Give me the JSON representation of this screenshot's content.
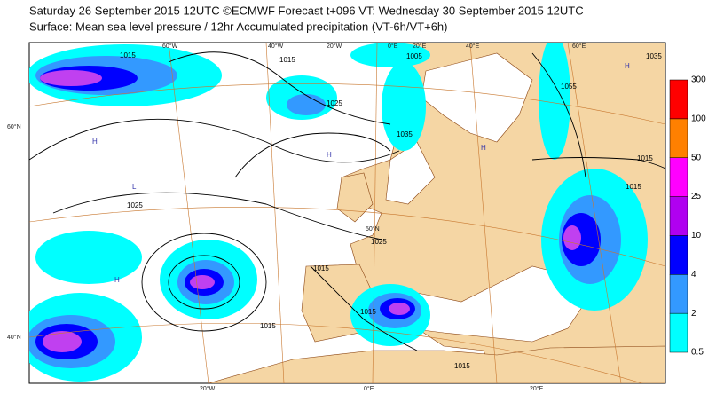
{
  "header": {
    "line1": "Saturday 26 September 2015 12UTC ©ECMWF Forecast t+096 VT: Wednesday 30 September 2015 12UTC",
    "line2": "Surface: Mean sea level pressure / 12hr Accumulated precipitation (VT-6h/VT+6h)"
  },
  "map": {
    "graticule_labels": [
      "60°W",
      "40°W",
      "20°W",
      "0°E",
      "20°E",
      "40°E",
      "60°E",
      "60°N",
      "40°N",
      "50°N",
      "20°W",
      "0°E",
      "20°E"
    ],
    "isobar_labels": [
      "1015",
      "1015",
      "1005",
      "1025",
      "1035",
      "1055",
      "1025",
      "1015",
      "1015",
      "1025",
      "1015",
      "1015",
      "1015",
      "1015",
      "1035"
    ],
    "pressure_centres": [
      "H",
      "L",
      "H",
      "H",
      "H",
      "H"
    ]
  },
  "legend": {
    "levels": [
      0.5,
      2,
      4,
      10,
      25,
      50,
      100,
      300
    ],
    "colors": [
      "#00ffff",
      "#3399ff",
      "#0000ff",
      "#b000f0",
      "#ff00ff",
      "#ff8000",
      "#ff0000"
    ]
  }
}
